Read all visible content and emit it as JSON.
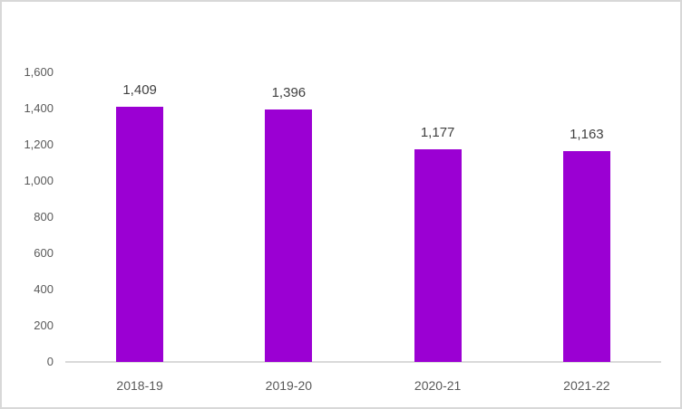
{
  "chart_data": {
    "type": "bar",
    "title": "",
    "xlabel": "",
    "ylabel": "",
    "categories": [
      "2018-19",
      "2019-20",
      "2020-21",
      "2021-22"
    ],
    "values": [
      1409,
      1396,
      1177,
      1163
    ],
    "data_labels": [
      "1,409",
      "1,396",
      "1,177",
      "1,163"
    ],
    "y_ticks": [
      0,
      200,
      400,
      600,
      800,
      1000,
      1200,
      1400,
      1600
    ],
    "y_tick_labels": [
      "0",
      "200",
      "400",
      "600",
      "800",
      "1,000",
      "1,200",
      "1,400",
      "1,600"
    ],
    "ylim": [
      0,
      1600
    ],
    "grid": false,
    "legend": false,
    "data_labels_shown": true,
    "colors": {
      "bar": "#9b00d3",
      "axis_line": "#d9d9d9",
      "frame_border": "#d8d8d8",
      "tick_label_text": "#595959",
      "category_label_text": "#595959",
      "data_label_text": "#404040",
      "background": "#ffffff"
    }
  }
}
